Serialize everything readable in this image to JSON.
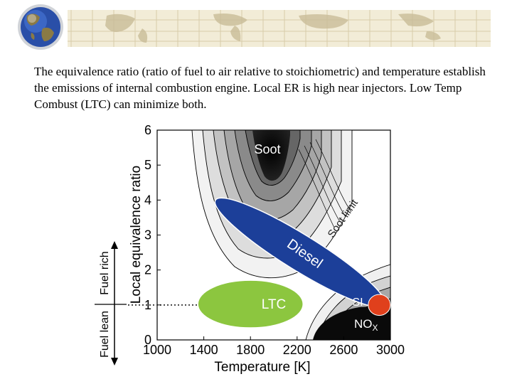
{
  "caption": "The equivalence ratio (ratio of fuel to air relative to stoichiometric) and temperature establish the emissions of internal combustion engine.  Local ER is high near injectors. Low Temp Combust (LTC) can minimize both.",
  "colors": {
    "banner_ticket": "#f2ecd7",
    "banner_grid": "#c9bd98",
    "globe_ocean": "#2a4fa8",
    "globe_land": "#8a7a45",
    "diesel_blue": "#1c3f99",
    "ltc_green": "#8cc63f",
    "si_red": "#e0401c",
    "soot_dark": "#0a0a0a"
  },
  "icons": {
    "globe": "globe-icon"
  },
  "chart_data": {
    "type": "contour",
    "xlabel": "Temperature [K]",
    "ylabel": "Local equivalence ratio",
    "xlim": [
      1000,
      3000
    ],
    "ylim": [
      0,
      6
    ],
    "xticks": [
      1000,
      1400,
      1800,
      2200,
      2600,
      3000
    ],
    "yticks": [
      0,
      1,
      2,
      3,
      4,
      5,
      6
    ],
    "stoichiometric_line": {
      "y": 1,
      "style": "dotted"
    },
    "side_arrow": {
      "rich_label": "Fuel rich",
      "lean_label": "Fuel lean"
    },
    "regions": [
      {
        "name": "Soot",
        "label": "Soot",
        "center": [
          1870,
          5.4
        ]
      },
      {
        "name": "NOx",
        "label": "NO",
        "subscript": "X",
        "center": [
          2720,
          0.4
        ]
      },
      {
        "name": "Soot limit",
        "label": "Soot limit",
        "center": [
          2320,
          3.3
        ]
      }
    ],
    "ellipses": [
      {
        "name": "Diesel",
        "label": "Diesel",
        "color": "#1c3f99",
        "x_range": [
          1500,
          2950
        ],
        "y_range": [
          1.0,
          4.0
        ]
      },
      {
        "name": "LTC",
        "label": "LTC",
        "color": "#8cc63f",
        "x_range": [
          1350,
          2250
        ],
        "y_range": [
          0.35,
          1.7
        ]
      },
      {
        "name": "SI",
        "label": "SI",
        "color": "#e0401c",
        "x_range": [
          2810,
          3000
        ],
        "y_range": [
          0.7,
          1.3
        ]
      }
    ]
  }
}
